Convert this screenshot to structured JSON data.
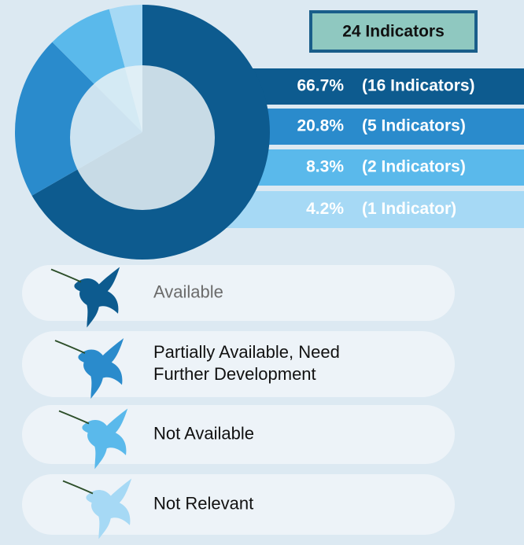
{
  "chart_data": {
    "type": "pie",
    "badge": "24 Indicators",
    "categories": [
      "Available",
      "Partially Available, Need Further Development",
      "Not Available",
      "Not Relevant"
    ],
    "values": [
      66.7,
      20.8,
      8.3,
      4.2
    ],
    "value_labels": [
      "66.7%",
      "20.8%",
      "8.3%",
      "4.2%"
    ],
    "count_labels": [
      "(16 Indicators)",
      "(5 Indicators)",
      "(2 Indicators)",
      "(1 Indicator)"
    ],
    "colors": [
      "#0d5b8f",
      "#2a8bcc",
      "#5ab9eb",
      "#a6d9f5"
    ]
  }
}
